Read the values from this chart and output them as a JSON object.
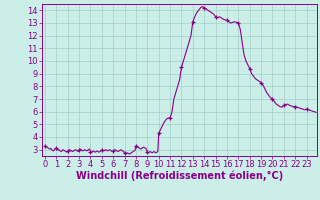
{
  "xlabel": "Windchill (Refroidissement éolien,°C)",
  "bg_color": "#cceee8",
  "grid_color": "#aad4ce",
  "line_color": "#880088",
  "x_values": [
    0.0,
    0.08,
    0.17,
    0.25,
    0.33,
    0.42,
    0.5,
    0.58,
    0.67,
    0.75,
    0.83,
    0.92,
    1.0,
    1.08,
    1.17,
    1.25,
    1.33,
    1.42,
    1.5,
    1.58,
    1.67,
    1.75,
    1.83,
    1.92,
    2.0,
    2.08,
    2.17,
    2.25,
    2.33,
    2.42,
    2.5,
    2.58,
    2.67,
    2.75,
    2.83,
    2.92,
    3.0,
    3.08,
    3.17,
    3.25,
    3.33,
    3.42,
    3.5,
    3.58,
    3.67,
    3.75,
    3.83,
    3.92,
    4.0,
    4.08,
    4.17,
    4.25,
    4.33,
    4.42,
    4.5,
    4.58,
    4.67,
    4.75,
    4.83,
    4.92,
    5.0,
    5.08,
    5.17,
    5.25,
    5.33,
    5.42,
    5.5,
    5.58,
    5.67,
    5.75,
    5.83,
    5.92,
    6.0,
    6.08,
    6.17,
    6.25,
    6.33,
    6.42,
    6.5,
    6.58,
    6.67,
    6.75,
    6.83,
    6.92,
    7.0,
    7.08,
    7.17,
    7.25,
    7.33,
    7.42,
    7.5,
    7.58,
    7.67,
    7.75,
    7.83,
    7.92,
    8.0,
    8.08,
    8.17,
    8.25,
    8.33,
    8.42,
    8.5,
    8.58,
    8.67,
    8.75,
    8.83,
    8.92,
    9.0,
    9.08,
    9.17,
    9.25,
    9.33,
    9.42,
    9.5,
    9.58,
    9.67,
    9.75,
    9.83,
    9.92,
    10.0,
    10.17,
    10.33,
    10.5,
    10.67,
    10.83,
    11.0,
    11.17,
    11.33,
    11.5,
    11.67,
    11.83,
    12.0,
    12.17,
    12.33,
    12.5,
    12.67,
    12.83,
    13.0,
    13.17,
    13.33,
    13.5,
    13.67,
    13.83,
    14.0,
    14.17,
    14.33,
    14.5,
    14.67,
    14.83,
    15.0,
    15.17,
    15.33,
    15.5,
    15.67,
    15.83,
    16.0,
    16.17,
    16.33,
    16.5,
    16.67,
    16.83,
    17.0,
    17.17,
    17.33,
    17.5,
    17.67,
    17.83,
    18.0,
    18.17,
    18.33,
    18.5,
    18.67,
    18.83,
    19.0,
    19.17,
    19.33,
    19.5,
    19.67,
    19.83,
    20.0,
    20.17,
    20.33,
    20.5,
    20.67,
    20.83,
    21.0,
    21.17,
    21.33,
    21.5,
    21.67,
    21.83,
    22.0,
    22.17,
    22.33,
    22.5,
    22.67,
    22.83,
    23.0,
    23.17,
    23.33,
    23.5,
    23.67,
    23.83
  ],
  "y_values": [
    3.3,
    3.25,
    3.2,
    3.15,
    3.1,
    3.05,
    3.1,
    3.0,
    2.95,
    2.9,
    3.0,
    3.1,
    3.1,
    3.0,
    2.95,
    3.0,
    2.9,
    2.85,
    2.9,
    3.0,
    2.95,
    2.9,
    2.85,
    2.8,
    2.9,
    2.95,
    3.0,
    2.95,
    2.9,
    2.85,
    2.9,
    2.95,
    3.0,
    2.95,
    2.9,
    2.85,
    3.0,
    3.05,
    3.0,
    2.95,
    2.9,
    2.95,
    3.0,
    2.95,
    2.9,
    2.95,
    3.0,
    3.05,
    2.85,
    2.8,
    2.85,
    2.9,
    2.85,
    2.8,
    2.85,
    2.9,
    2.85,
    2.8,
    2.85,
    2.9,
    3.0,
    2.95,
    2.9,
    2.95,
    3.0,
    2.95,
    2.9,
    2.95,
    3.0,
    2.95,
    2.9,
    2.85,
    2.9,
    2.95,
    3.0,
    2.95,
    2.9,
    2.85,
    2.9,
    2.95,
    3.0,
    2.95,
    2.9,
    2.85,
    2.7,
    2.65,
    2.7,
    2.75,
    2.7,
    2.65,
    2.7,
    2.75,
    2.8,
    2.85,
    2.9,
    2.95,
    3.3,
    3.25,
    3.2,
    3.15,
    3.1,
    3.05,
    3.1,
    3.15,
    3.2,
    3.15,
    3.1,
    3.05,
    2.8,
    2.75,
    2.8,
    2.85,
    2.8,
    2.75,
    2.8,
    2.85,
    2.8,
    2.75,
    2.8,
    2.85,
    4.3,
    4.6,
    4.9,
    5.2,
    5.4,
    5.5,
    5.5,
    6.0,
    7.0,
    7.5,
    8.0,
    8.5,
    9.5,
    10.0,
    10.5,
    11.0,
    11.5,
    12.0,
    13.1,
    13.5,
    13.8,
    14.0,
    14.2,
    14.3,
    14.2,
    14.1,
    14.0,
    13.9,
    13.8,
    13.7,
    13.5,
    13.4,
    13.5,
    13.4,
    13.3,
    13.25,
    13.2,
    13.1,
    13.0,
    13.05,
    13.1,
    13.05,
    13.0,
    12.5,
    11.5,
    10.5,
    10.0,
    9.7,
    9.4,
    9.0,
    8.8,
    8.6,
    8.5,
    8.4,
    8.3,
    8.1,
    7.8,
    7.5,
    7.3,
    7.1,
    7.0,
    6.8,
    6.6,
    6.5,
    6.4,
    6.35,
    6.5,
    6.55,
    6.6,
    6.5,
    6.45,
    6.4,
    6.4,
    6.35,
    6.3,
    6.25,
    6.2,
    6.15,
    6.2,
    6.15,
    6.1,
    6.05,
    6.0,
    5.95
  ],
  "marker_x": [
    0,
    1,
    2,
    3,
    4,
    5,
    6,
    7,
    8,
    9,
    10,
    11,
    12,
    13,
    14,
    15,
    16,
    17,
    18,
    19,
    20,
    21,
    22,
    23
  ],
  "marker_y": [
    3.3,
    3.1,
    2.9,
    3.0,
    2.85,
    3.0,
    2.9,
    2.7,
    3.3,
    2.8,
    4.3,
    5.5,
    9.5,
    13.1,
    14.2,
    13.5,
    13.2,
    13.0,
    9.4,
    8.3,
    7.0,
    6.5,
    6.4,
    6.2
  ],
  "ylim": [
    2.5,
    14.5
  ],
  "xlim": [
    -0.3,
    23.9
  ],
  "yticks": [
    3,
    4,
    5,
    6,
    7,
    8,
    9,
    10,
    11,
    12,
    13,
    14
  ],
  "xticks": [
    0,
    1,
    2,
    3,
    4,
    5,
    6,
    7,
    8,
    9,
    10,
    11,
    12,
    13,
    14,
    15,
    16,
    17,
    18,
    19,
    20,
    21,
    22,
    23
  ],
  "tick_fontsize": 6,
  "xlabel_fontsize": 7
}
